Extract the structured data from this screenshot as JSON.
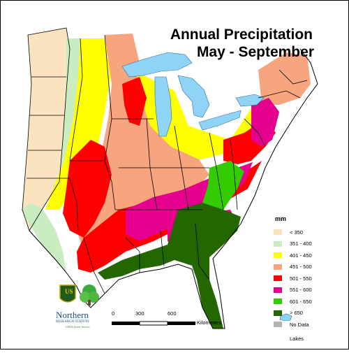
{
  "title": {
    "line1": "Annual Precipitation",
    "line2": "May - September"
  },
  "legend": {
    "title": "mm",
    "items": [
      {
        "label": "< 350",
        "color": "#fbe3c0"
      },
      {
        "label": "351 - 400",
        "color": "#c9ecc0"
      },
      {
        "label": "401 - 450",
        "color": "#ffff00"
      },
      {
        "label": "451 - 500",
        "color": "#f7a57e"
      },
      {
        "label": "501 - 550",
        "color": "#ff0000"
      },
      {
        "label": "551 - 600",
        "color": "#e6008e"
      },
      {
        "label": "601 - 650",
        "color": "#33cc00"
      },
      {
        "label": "> 650",
        "color": "#246600"
      },
      {
        "label": "No Data",
        "color": "#b3b3b3"
      }
    ],
    "lakes_label": "Lakes",
    "lakes_color": "#8fd3f5"
  },
  "scale": {
    "labels": [
      "0",
      "300",
      "600"
    ],
    "unit": "Kilometers"
  },
  "logo": {
    "agency_badge": "US",
    "org_line1": "Northern",
    "org_line2": "RESEARCH STATION",
    "org_line3": "USDA Forest Service"
  }
}
